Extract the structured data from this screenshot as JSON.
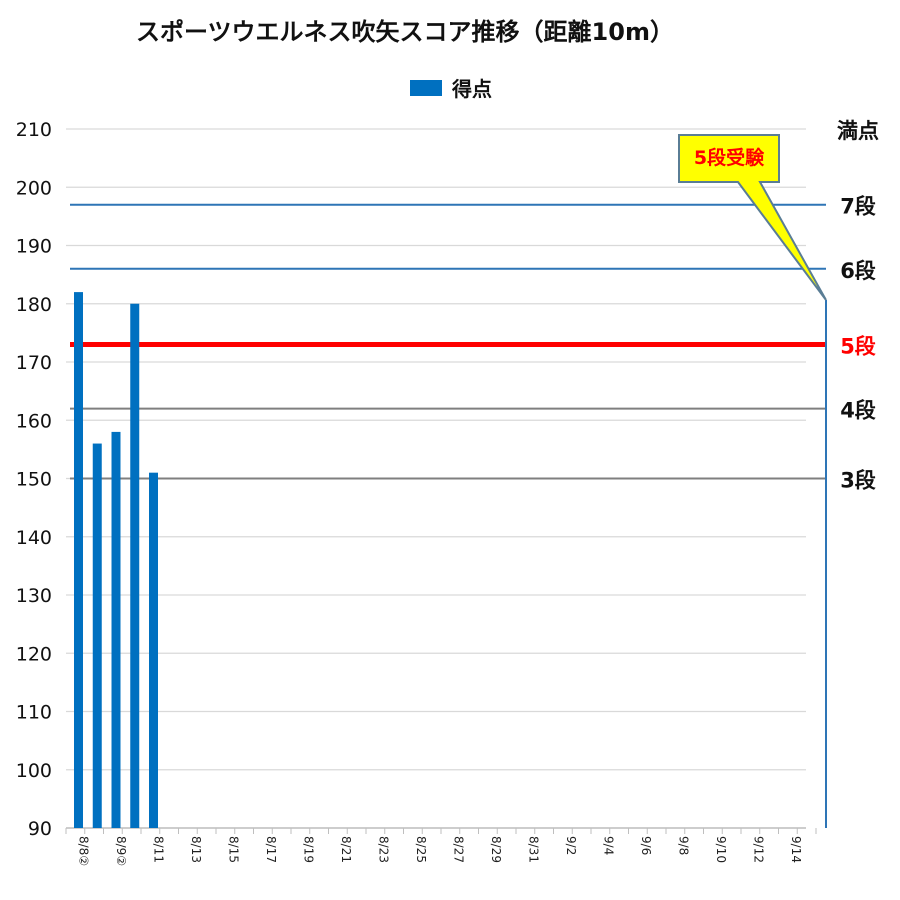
{
  "chart_data": {
    "type": "bar",
    "title": "スポーツウエルネス吹矢スコア推移（距離10m）",
    "legend": "得点",
    "ylim": [
      90,
      210
    ],
    "yticks": [
      "90",
      "100",
      "110",
      "120",
      "130",
      "140",
      "150",
      "160",
      "170",
      "180",
      "190",
      "200",
      "210"
    ],
    "x_ticks": [
      "8/8②",
      "8/9②",
      "8/11",
      "8/13",
      "8/15",
      "8/17",
      "8/19",
      "8/21",
      "8/23",
      "8/25",
      "8/27",
      "8/29",
      "8/31",
      "9/2",
      "9/4",
      "9/6",
      "9/8",
      "9/10",
      "9/12",
      "9/14"
    ],
    "bars": [
      {
        "slot": 0,
        "value": 182
      },
      {
        "slot": 1,
        "value": 156
      },
      {
        "slot": 2,
        "value": 158
      },
      {
        "slot": 3,
        "value": 180
      },
      {
        "slot": 4,
        "value": 151
      }
    ],
    "reference_lines": [
      {
        "label": "満点",
        "value": 210,
        "color": "#bfbfbf"
      },
      {
        "label": "7段",
        "value": 197,
        "color": "#2e75b6"
      },
      {
        "label": "6段",
        "value": 186,
        "color": "#2e75b6"
      },
      {
        "label": "5段",
        "value": 173,
        "color": "#ff0000"
      },
      {
        "label": "4段",
        "value": 162,
        "color": "#7f7f7f"
      },
      {
        "label": "3段",
        "value": 150,
        "color": "#7f7f7f"
      }
    ],
    "callout": "5段受験",
    "colors": {
      "bar": "#0070c0",
      "grid": "#d9d9d9",
      "callout_fill": "#ffff00"
    }
  }
}
